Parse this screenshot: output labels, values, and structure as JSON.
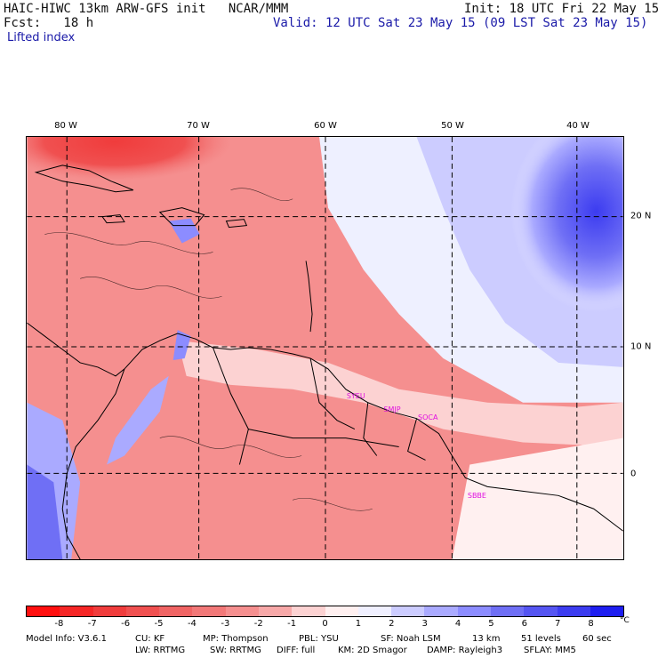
{
  "header": {
    "model_title": "HAIC-HIWC 13km ARW-GFS init   NCAR/MMM",
    "init_time": "Init: 18 UTC Fri 22 May 15",
    "forecast_label": "Fcst:   18 h",
    "valid_time": "Valid: 12 UTC Sat 23 May 15 (09 LST Sat 23 May 15)",
    "field_name": "Lifted index"
  },
  "map": {
    "longitude_labels": [
      "80 W",
      "70 W",
      "60 W",
      "50 W",
      "40 W"
    ],
    "latitude_labels": [
      "20 N",
      "10 N",
      "0"
    ],
    "longitudes": [
      -80,
      -70,
      -60,
      -50,
      -40
    ],
    "latitudes": [
      20,
      10,
      0
    ],
    "extent": {
      "lon_min": -83.2,
      "lon_max": -36.2,
      "lat_min": -6.8,
      "lat_max": 26.7
    },
    "stations": [
      {
        "label": "SYEU",
        "lon": -58.0,
        "lat": 6.5
      },
      {
        "label": "SMJP",
        "lon": -55.1,
        "lat": 5.4
      },
      {
        "label": "SOCA",
        "lon": -52.4,
        "lat": 4.8
      },
      {
        "label": "SBBE",
        "lon": -48.5,
        "lat": -1.4
      }
    ],
    "colors": {
      "grid": "#000000",
      "coast": "#000000",
      "station_label": "#e010e0"
    }
  },
  "colorbar": {
    "tick_labels": [
      "-8",
      "-7",
      "-6",
      "-5",
      "-4",
      "-3",
      "-2",
      "-1",
      "0",
      "1",
      "2",
      "3",
      "4",
      "5",
      "6",
      "7",
      "8"
    ],
    "unit": "°C",
    "colors": [
      "#ff0f0f",
      "#f52626",
      "#f03c3c",
      "#f05050",
      "#f06464",
      "#f27878",
      "#f58f8f",
      "#f7a8a8",
      "#fcd2d2",
      "#fff0f0",
      "#f0f0ff",
      "#ccccff",
      "#aaaaff",
      "#8c8cff",
      "#6f6ff5",
      "#5555f2",
      "#3c3cf0",
      "#1e1ef0"
    ]
  },
  "model_info": {
    "line1": [
      "Model Info: V3.6.1",
      "CU: KF",
      "MP: Thompson",
      "PBL: YSU",
      "SF: Noah LSM",
      "13 km",
      "51 levels",
      "60 sec"
    ],
    "line2": [
      "LW: RRTMG",
      "SW: RRTMG",
      "DIFF: full",
      "KM: 2D Smagor",
      "DAMP: Rayleigh3",
      "SFLAY: MM5"
    ]
  }
}
